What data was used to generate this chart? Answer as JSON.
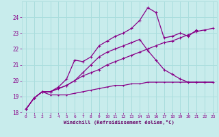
{
  "background_color": "#c8ecec",
  "grid_color": "#aadddd",
  "line_color": "#880088",
  "xlabel": "Windchill (Refroidissement éolien,°C)",
  "xlabel_color": "#660066",
  "xlim": [
    -0.5,
    23.5
  ],
  "ylim": [
    18,
    25
  ],
  "yticks": [
    18,
    19,
    20,
    21,
    22,
    23,
    24
  ],
  "xticks": [
    0,
    1,
    2,
    3,
    4,
    5,
    6,
    7,
    8,
    9,
    10,
    11,
    12,
    13,
    14,
    15,
    16,
    17,
    18,
    19,
    20,
    21,
    22,
    23
  ],
  "series": [
    {
      "x": [
        0,
        1,
        2,
        3,
        4,
        5,
        6,
        7,
        8,
        9,
        10,
        11,
        12,
        13,
        14,
        15,
        16,
        17,
        18,
        19,
        20,
        21,
        22,
        23
      ],
      "y": [
        18.2,
        18.9,
        19.3,
        19.1,
        19.1,
        19.1,
        19.2,
        19.3,
        19.4,
        19.5,
        19.6,
        19.7,
        19.7,
        19.8,
        19.8,
        19.9,
        19.9,
        19.9,
        19.9,
        19.9,
        19.9,
        19.9,
        19.9,
        19.9
      ]
    },
    {
      "x": [
        0,
        1,
        2,
        3,
        4,
        5,
        6,
        7,
        8,
        9,
        10,
        11,
        12,
        13,
        14,
        15,
        16,
        17,
        18,
        19,
        20,
        21,
        22,
        23
      ],
      "y": [
        18.2,
        18.9,
        19.3,
        19.3,
        19.5,
        19.7,
        20.0,
        20.3,
        20.5,
        20.7,
        21.0,
        21.2,
        21.4,
        21.6,
        21.8,
        22.0,
        22.2,
        22.4,
        22.5,
        22.7,
        22.9,
        23.1,
        23.2,
        23.3
      ]
    },
    {
      "x": [
        0,
        1,
        2,
        3,
        4,
        5,
        6,
        7,
        8,
        9,
        10,
        11,
        12,
        13,
        14,
        15,
        16,
        17,
        18,
        19,
        20,
        21,
        22,
        23
      ],
      "y": [
        18.2,
        18.9,
        19.3,
        19.3,
        19.5,
        19.7,
        20.0,
        20.5,
        21.0,
        21.5,
        21.8,
        22.0,
        22.2,
        22.4,
        22.6,
        21.9,
        21.3,
        20.7,
        20.4,
        20.1,
        19.9,
        19.9,
        19.9,
        19.9
      ]
    },
    {
      "x": [
        0,
        1,
        2,
        3,
        4,
        5,
        6,
        7,
        8,
        9,
        10,
        11,
        12,
        13,
        14,
        15,
        16,
        17,
        18,
        19,
        20,
        21
      ],
      "y": [
        18.2,
        18.9,
        19.3,
        19.3,
        19.6,
        20.1,
        21.3,
        21.2,
        21.5,
        22.2,
        22.5,
        22.8,
        23.0,
        23.3,
        23.8,
        24.6,
        24.3,
        22.7,
        22.8,
        23.0,
        22.8,
        23.2
      ]
    }
  ]
}
